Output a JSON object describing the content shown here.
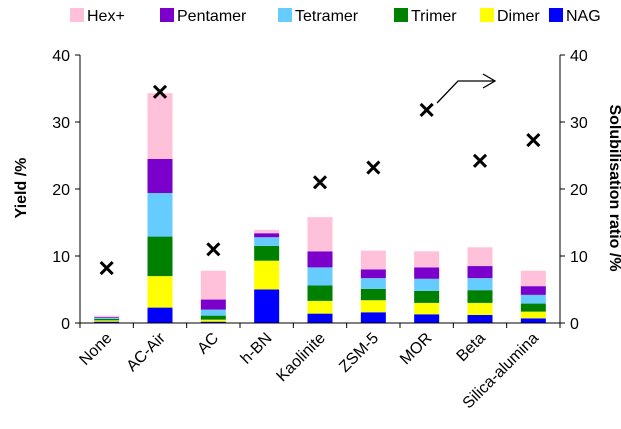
{
  "chart_data": {
    "type": "bar",
    "stacked": true,
    "categories": [
      "None",
      "AC-Air",
      "AC",
      "h-BN",
      "Kaolinite",
      "ZSM-5",
      "MOR",
      "Beta",
      "Silica-alumina"
    ],
    "series": [
      {
        "name": "NAG",
        "color": "#0000ff",
        "values": [
          0.2,
          2.3,
          0.2,
          5.0,
          1.4,
          1.6,
          1.3,
          1.2,
          0.7
        ]
      },
      {
        "name": "Dimer",
        "color": "#ffff00",
        "values": [
          0.2,
          4.7,
          0.3,
          4.3,
          1.9,
          1.8,
          1.7,
          1.8,
          1.0
        ]
      },
      {
        "name": "Trimer",
        "color": "#008000",
        "values": [
          0.2,
          5.9,
          0.6,
          2.2,
          2.3,
          1.7,
          1.8,
          1.9,
          1.2
        ]
      },
      {
        "name": "Tetramer",
        "color": "#66ccff",
        "values": [
          0.2,
          6.5,
          0.9,
          1.3,
          2.7,
          1.6,
          1.8,
          1.8,
          1.3
        ]
      },
      {
        "name": "Pentamer",
        "color": "#7b00cc",
        "values": [
          0.1,
          5.1,
          1.5,
          0.6,
          2.4,
          1.3,
          1.7,
          1.8,
          1.3
        ]
      },
      {
        "name": "Hex+",
        "color": "#ffc0d9",
        "values": [
          0.2,
          9.8,
          4.3,
          0.5,
          5.1,
          2.8,
          2.4,
          2.8,
          2.3
        ]
      }
    ],
    "legend_order": [
      "Hex+",
      "Pentamer",
      "Tetramer",
      "Trimer",
      "Dimer",
      "NAG"
    ],
    "solubilisation_ratio": [
      8.2,
      34.5,
      11.0,
      null,
      21.0,
      23.2,
      31.8,
      24.2,
      27.3
    ],
    "ylabel": "Yield /%",
    "y2label": "Solubilisation ratio /%",
    "ylim": [
      0,
      40
    ],
    "y2lim": [
      0,
      40
    ],
    "yticks": [
      0,
      10,
      20,
      30,
      40
    ],
    "legend_position": "top",
    "grid": false
  }
}
